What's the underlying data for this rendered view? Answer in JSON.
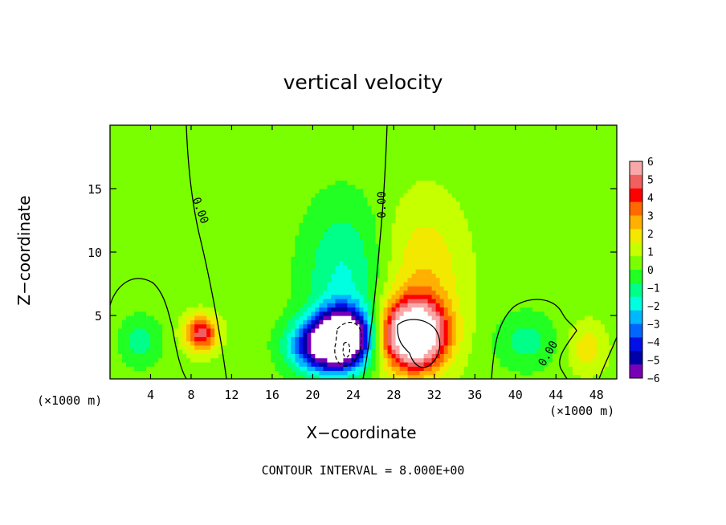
{
  "chart_data": {
    "type": "heatmap",
    "title": "vertical velocity",
    "xlabel": "X−coordinate",
    "ylabel": "Z−coordinate",
    "x_unit_note": "(×1000 m)",
    "xlim": [
      0,
      50
    ],
    "ylim": [
      0,
      20
    ],
    "x_ticks": [
      4,
      8,
      12,
      16,
      20,
      24,
      28,
      32,
      36,
      40,
      44,
      48
    ],
    "y_ticks": [
      5,
      10,
      15
    ],
    "colorbar": {
      "labels": [
        "6",
        "5",
        "4",
        "3",
        "2",
        "1",
        "0",
        "−1",
        "−2",
        "−3",
        "−4",
        "−5",
        "−6"
      ],
      "colors": [
        "#f8a8a8",
        "#f06060",
        "#ff0000",
        "#ff6a00",
        "#ffb000",
        "#f2e800",
        "#c6ff00",
        "#7aff00",
        "#22ff22",
        "#00ff88",
        "#00ffe0",
        "#00b8ff",
        "#0066ff",
        "#0010e6",
        "#0000a8",
        "#7a00b8"
      ]
    },
    "contour_labels": [
      "0.00",
      "0.00",
      "0.00"
    ],
    "contour_interval": "CONTOUR INTERVAL = 8.000E+00",
    "features": [
      {
        "x": 23,
        "z": 3.3,
        "value": -9,
        "sx": 2.6,
        "sz": 2.2
      },
      {
        "x": 20.5,
        "z": 2.6,
        "value": -5,
        "sx": 3.0,
        "sz": 2.0
      },
      {
        "x": 30,
        "z": 3.5,
        "value": 9,
        "sx": 3.0,
        "sz": 2.6
      },
      {
        "x": 9,
        "z": 3.6,
        "value": 4.5,
        "sx": 1.6,
        "sz": 1.4
      },
      {
        "x": 23,
        "z": 8,
        "value": -2,
        "sx": 4.0,
        "sz": 6.0
      },
      {
        "x": 31,
        "z": 8,
        "value": 1.8,
        "sx": 4.0,
        "sz": 6.0
      },
      {
        "x": 3,
        "z": 3,
        "value": -1.5,
        "sx": 2.0,
        "sz": 2.0
      },
      {
        "x": 41,
        "z": 3,
        "value": -1.5,
        "sx": 3.0,
        "sz": 2.2
      },
      {
        "x": 47,
        "z": 2.5,
        "value": 1.5,
        "sx": 2.0,
        "sz": 2.0
      }
    ]
  },
  "footer": {
    "text": "CONTOUR INTERVAL = 8.000E+00"
  }
}
